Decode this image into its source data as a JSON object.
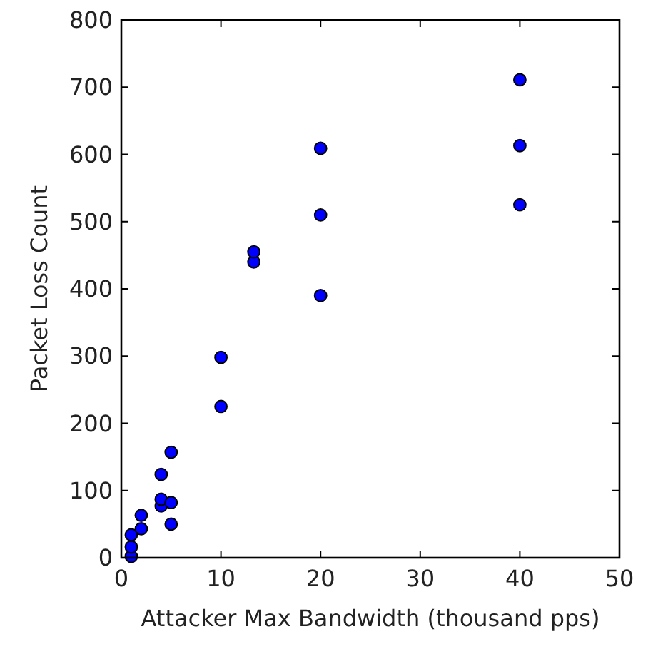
{
  "chart_data": {
    "type": "scatter",
    "xlabel": "Attacker Max Bandwidth (thousand pps)",
    "ylabel": "Packet Loss Count",
    "x": [
      1,
      1,
      1,
      2,
      2,
      4,
      4,
      4,
      5,
      5,
      5,
      10,
      10,
      13.3,
      13.3,
      20,
      20,
      20,
      40,
      40,
      40
    ],
    "values": [
      2,
      16,
      34,
      43,
      63,
      77,
      87,
      124,
      50,
      82,
      157,
      225,
      298,
      440,
      455,
      390,
      510,
      609,
      525,
      613,
      711
    ],
    "color": "#0000ff",
    "marker": "circle",
    "grid": false,
    "xlim": [
      0,
      50
    ],
    "xticks": [
      0,
      10,
      20,
      30,
      40,
      50
    ],
    "ylim": [
      0,
      800
    ],
    "yticks": [
      0,
      100,
      200,
      300,
      400,
      500,
      600,
      700,
      800
    ]
  }
}
